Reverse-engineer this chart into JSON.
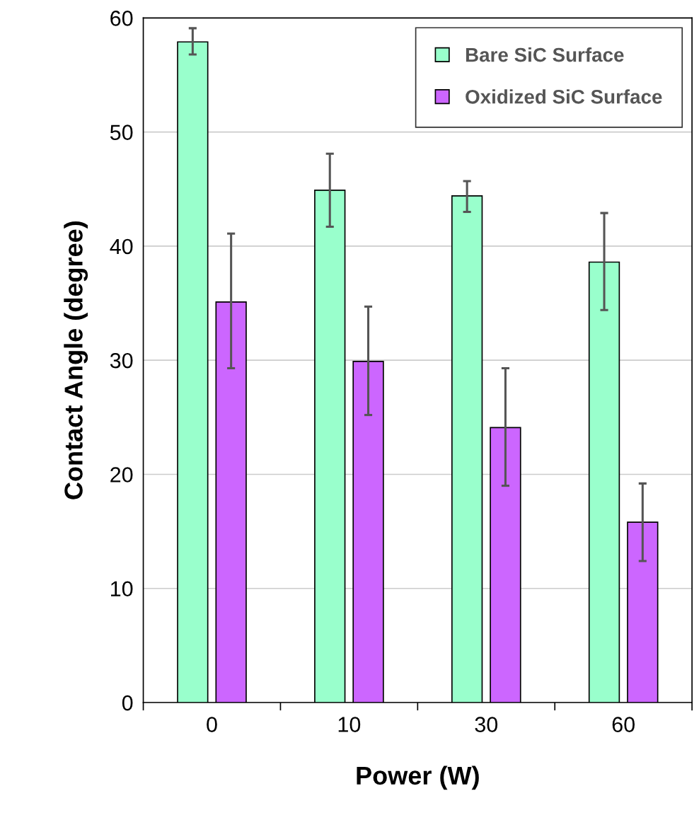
{
  "chart_data": {
    "type": "bar",
    "xlabel": "Power (W)",
    "ylabel": "Contact Angle (degree)",
    "categories": [
      "0",
      "10",
      "30",
      "60"
    ],
    "series": [
      {
        "name": "Bare SiC Surface",
        "color": "#99ffcc",
        "values": [
          57.9,
          44.9,
          44.4,
          38.6
        ],
        "errors": [
          [
            56.8,
            59.1
          ],
          [
            41.7,
            48.1
          ],
          [
            43.0,
            45.7
          ],
          [
            34.4,
            42.9
          ]
        ]
      },
      {
        "name": "Oxidized SiC Surface",
        "color": "#cc66ff",
        "values": [
          35.1,
          29.9,
          24.1,
          15.8
        ],
        "errors": [
          [
            29.3,
            41.1
          ],
          [
            25.2,
            34.7
          ],
          [
            19.0,
            29.3
          ],
          [
            12.4,
            19.2
          ]
        ]
      }
    ],
    "ylim": [
      0,
      60
    ],
    "yticks": [
      0,
      10,
      20,
      30,
      40,
      50,
      60
    ],
    "grid": "y",
    "legend": "top right"
  }
}
